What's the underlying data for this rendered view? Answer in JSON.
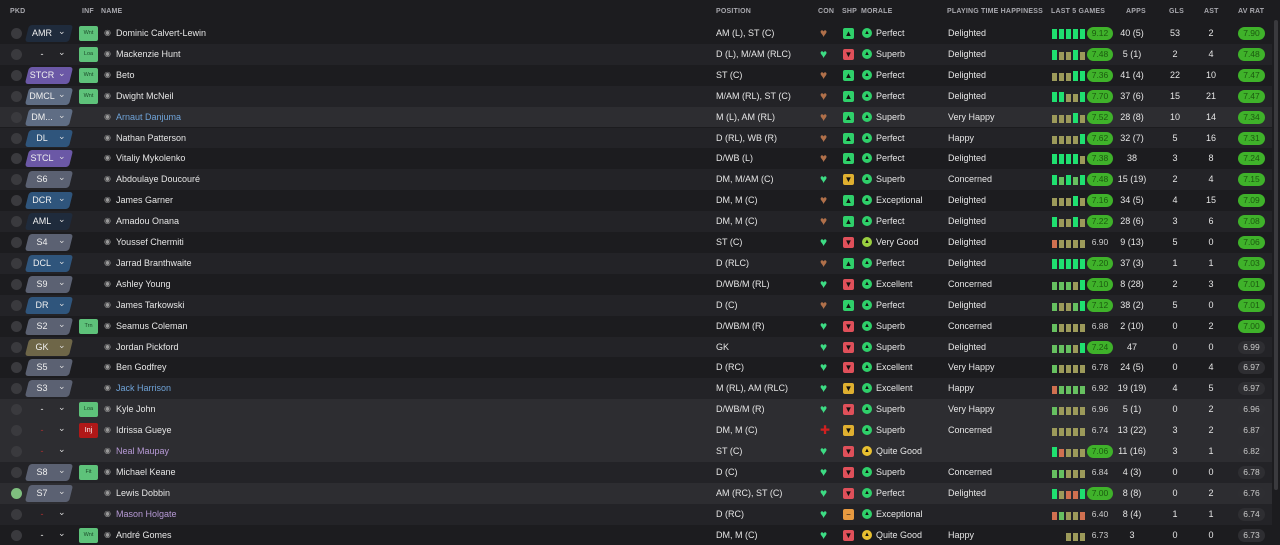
{
  "headers": {
    "pkd": "PKD",
    "inf": "INF",
    "name": "NAME",
    "position": "POSITION",
    "con": "CON",
    "shp": "SHP",
    "morale": "MORALE",
    "pth": "PLAYING TIME HAPPINESS",
    "last5": "LAST 5 GAMES",
    "apps": "APPS",
    "gls": "GLS",
    "ast": "AST",
    "avrat": "AV RAT"
  },
  "colors": {
    "slot_navy": "#1f2b3c",
    "slot_blue": "#2f557c",
    "slot_purple": "#6b58a6",
    "slot_grey": "#5b6172",
    "slot_steel": "#5f6d84",
    "slot_gk": "#6e6648",
    "green": "#3fb22a",
    "bar_G": "#1fe070",
    "bar_L": "#66c060",
    "bar_O": "#9c9a5a",
    "bar_R": "#d07050"
  },
  "players": [
    {
      "slot": "AMR",
      "slot_color": "slot_navy",
      "inf": "Wnt",
      "name": "Dominic Calvert-Lewin",
      "pos": "AM (L), ST (C)",
      "con": "brown",
      "shp": "up",
      "morale": "Perfect",
      "pth": "Delighted",
      "last5": "GGGGG",
      "last": "9.12",
      "apps": "40 (5)",
      "gls": "53",
      "ast": "2",
      "av": "7.90"
    },
    {
      "slot": "-",
      "inf": "Loa",
      "name": "Mackenzie Hunt",
      "pos": "D (L), M/AM (RLC)",
      "con": "green",
      "shp": "down",
      "morale": "Superb",
      "pth": "Delighted",
      "last5": "GOOGO",
      "last": "7.48",
      "apps": "5 (1)",
      "gls": "2",
      "ast": "4",
      "av": "7.48"
    },
    {
      "slot": "STCR",
      "slot_color": "slot_purple",
      "inf": "Wnt",
      "name": "Beto",
      "pos": "ST (C)",
      "con": "brown",
      "shp": "up",
      "morale": "Perfect",
      "pth": "Delighted",
      "last5": "OOOGG",
      "last": "7.36",
      "apps": "41 (4)",
      "gls": "22",
      "ast": "10",
      "av": "7.47"
    },
    {
      "slot": "DMCL",
      "slot_color": "slot_steel",
      "inf": "Wnt",
      "name": "Dwight McNeil",
      "pos": "M/AM (RL), ST (C)",
      "con": "brown",
      "shp": "up",
      "morale": "Perfect",
      "pth": "Delighted",
      "last5": "GGOOG",
      "last": "7.70",
      "apps": "37 (6)",
      "gls": "15",
      "ast": "21",
      "av": "7.47"
    },
    {
      "slot": "DM...",
      "slot_color": "slot_steel",
      "inf": "",
      "name": "Arnaut Danjuma",
      "name_color": "blue",
      "pos": "M (L), AM (RL)",
      "con": "brown",
      "shp": "up",
      "morale": "Superb",
      "pth": "Very Happy",
      "last5": "OOOGO",
      "last": "7.52",
      "apps": "28 (8)",
      "gls": "10",
      "ast": "14",
      "av": "7.34",
      "hl": true
    },
    {
      "slot": "DL",
      "slot_color": "slot_blue",
      "inf": "",
      "name": "Nathan Patterson",
      "pos": "D (RL), WB (R)",
      "con": "brown",
      "shp": "up",
      "morale": "Perfect",
      "pth": "Happy",
      "last5": "OOOOG",
      "last": "7.62",
      "apps": "32 (7)",
      "gls": "5",
      "ast": "16",
      "av": "7.31"
    },
    {
      "slot": "STCL",
      "slot_color": "slot_purple",
      "inf": "",
      "name": "Vitaliy Mykolenko",
      "pos": "D/WB (L)",
      "con": "brown",
      "shp": "up",
      "morale": "Perfect",
      "pth": "Delighted",
      "last5": "GGGGO",
      "last": "7.38",
      "apps": "38",
      "gls": "3",
      "ast": "8",
      "av": "7.24"
    },
    {
      "slot": "S6",
      "slot_color": "slot_grey",
      "inf": "",
      "name": "Abdoulaye Doucouré",
      "pos": "DM, M/AM (C)",
      "con": "green",
      "shp": "mid",
      "morale": "Superb",
      "pth": "Concerned",
      "last5": "GLGLG",
      "last": "7.48",
      "apps": "15 (19)",
      "gls": "2",
      "ast": "4",
      "av": "7.15"
    },
    {
      "slot": "DCR",
      "slot_color": "slot_blue",
      "inf": "",
      "name": "James Garner",
      "pos": "DM, M (C)",
      "con": "brown",
      "shp": "up",
      "morale": "Exceptional",
      "pth": "Delighted",
      "last5": "OOOGO",
      "last": "7.16",
      "apps": "34 (5)",
      "gls": "4",
      "ast": "15",
      "av": "7.09"
    },
    {
      "slot": "AML",
      "slot_color": "slot_navy",
      "inf": "",
      "name": "Amadou Onana",
      "pos": "DM, M (C)",
      "con": "brown",
      "shp": "up",
      "morale": "Perfect",
      "pth": "Delighted",
      "last5": "GOOGO",
      "last": "7.22",
      "apps": "28 (6)",
      "gls": "3",
      "ast": "6",
      "av": "7.08"
    },
    {
      "slot": "S4",
      "slot_color": "slot_grey",
      "inf": "",
      "name": "Youssef Chermiti",
      "pos": "ST (C)",
      "con": "green",
      "shp": "down",
      "morale": "Very Good",
      "pth": "Delighted",
      "last5": "ROOOO",
      "last": "6.90",
      "apps": "9 (13)",
      "gls": "5",
      "ast": "0",
      "av": "7.06"
    },
    {
      "slot": "DCL",
      "slot_color": "slot_blue",
      "inf": "",
      "name": "Jarrad Branthwaite",
      "pos": "D (RLC)",
      "con": "brown",
      "shp": "up",
      "morale": "Perfect",
      "pth": "Delighted",
      "last5": "GGGGG",
      "last": "7.20",
      "apps": "37 (3)",
      "gls": "1",
      "ast": "1",
      "av": "7.03"
    },
    {
      "slot": "S9",
      "slot_color": "slot_grey",
      "inf": "",
      "name": "Ashley Young",
      "pos": "D/WB/M (RL)",
      "con": "green",
      "shp": "down",
      "morale": "Excellent",
      "pth": "Concerned",
      "last5": "LLLOG",
      "last": "7.10",
      "apps": "8 (28)",
      "gls": "2",
      "ast": "3",
      "av": "7.01"
    },
    {
      "slot": "DR",
      "slot_color": "slot_blue",
      "inf": "",
      "name": "James Tarkowski",
      "pos": "D (C)",
      "con": "brown",
      "shp": "up",
      "morale": "Perfect",
      "pth": "Delighted",
      "last5": "LOOLG",
      "last": "7.12",
      "apps": "38 (2)",
      "gls": "5",
      "ast": "0",
      "av": "7.01"
    },
    {
      "slot": "S2",
      "slot_color": "slot_grey",
      "inf": "Trn",
      "name": "Seamus Coleman",
      "pos": "D/WB/M (R)",
      "con": "green",
      "shp": "down",
      "morale": "Superb",
      "pth": "Concerned",
      "last5": "LOOOO",
      "last": "6.88",
      "apps": "2 (10)",
      "gls": "0",
      "ast": "2",
      "av": "7.00"
    },
    {
      "slot": "GK",
      "slot_color": "slot_gk",
      "inf": "",
      "name": "Jordan Pickford",
      "pos": "GK",
      "con": "green",
      "shp": "down",
      "morale": "Superb",
      "pth": "Delighted",
      "last5": "LLLOG",
      "last": "7.24",
      "apps": "47",
      "gls": "0",
      "ast": "0",
      "av": "6.99"
    },
    {
      "slot": "S5",
      "slot_color": "slot_grey",
      "inf": "",
      "name": "Ben Godfrey",
      "pos": "D (RC)",
      "con": "green",
      "shp": "down",
      "morale": "Excellent",
      "pth": "Very Happy",
      "last5": "LOOOO",
      "last": "6.78",
      "apps": "24 (5)",
      "gls": "0",
      "ast": "4",
      "av": "6.97"
    },
    {
      "slot": "S3",
      "slot_color": "slot_grey",
      "inf": "",
      "name": "Jack Harrison",
      "name_color": "blue",
      "pos": "M (RL), AM (RLC)",
      "con": "green",
      "shp": "mid",
      "morale": "Excellent",
      "pth": "Happy",
      "last5": "RLLLL",
      "last": "6.92",
      "apps": "19 (19)",
      "gls": "4",
      "ast": "5",
      "av": "6.97"
    },
    {
      "slot": "-",
      "inf": "Loa",
      "name": "Kyle John",
      "pos": "D/WB/M (R)",
      "con": "green",
      "shp": "down",
      "morale": "Superb",
      "pth": "Very Happy",
      "last5": "LOOOO",
      "last": "6.96",
      "apps": "5 (1)",
      "gls": "0",
      "ast": "2",
      "av": "6.96",
      "hl": true
    },
    {
      "slot": "-",
      "slot_red": true,
      "inf": "Inj",
      "name": "Idrissa Gueye",
      "pos": "DM, M (C)",
      "con": "injured",
      "shp": "mid",
      "morale": "Superb",
      "pth": "Concerned",
      "last5": "OOOOO",
      "last": "6.74",
      "apps": "13 (22)",
      "gls": "3",
      "ast": "2",
      "av": "6.87",
      "hl": true
    },
    {
      "slot": "-",
      "slot_red": true,
      "inf": "",
      "name": "Neal Maupay",
      "name_color": "purple",
      "pos": "ST (C)",
      "con": "green",
      "shp": "down",
      "morale": "Quite Good",
      "pth": "",
      "last5": "GROOO",
      "last": "7.06",
      "apps": "11 (16)",
      "gls": "3",
      "ast": "1",
      "av": "6.82",
      "hl": true
    },
    {
      "slot": "S8",
      "slot_color": "slot_grey",
      "inf": "Fit",
      "name": "Michael Keane",
      "pos": "D (C)",
      "con": "green",
      "shp": "down",
      "morale": "Superb",
      "pth": "Concerned",
      "last5": "LLOOO",
      "last": "6.84",
      "apps": "4 (3)",
      "gls": "0",
      "ast": "0",
      "av": "6.78"
    },
    {
      "slot": "S7",
      "slot_color": "slot_grey",
      "checked": true,
      "inf": "",
      "name": "Lewis Dobbin",
      "pos": "AM (RC), ST (C)",
      "con": "green",
      "shp": "down",
      "morale": "Perfect",
      "pth": "Delighted",
      "last5": "GORRG",
      "last": "7.00",
      "apps": "8 (8)",
      "gls": "0",
      "ast": "2",
      "av": "6.76",
      "hl": true
    },
    {
      "slot": "-",
      "slot_red": true,
      "inf": "",
      "name": "Mason Holgate",
      "name_color": "purple",
      "pos": "D (RC)",
      "con": "green",
      "shp": "neutral",
      "morale": "Exceptional",
      "pth": "",
      "last5": "RLOOR",
      "last": "6.40",
      "apps": "8 (4)",
      "gls": "1",
      "ast": "1",
      "av": "6.74"
    },
    {
      "slot": "-",
      "inf": "Wnt",
      "name": "André Gomes",
      "pos": "DM, M (C)",
      "con": "green",
      "shp": "down",
      "morale": "Quite Good",
      "pth": "Happy",
      "last5": "OOO",
      "last": "6.73",
      "apps": "3",
      "gls": "0",
      "ast": "0",
      "av": "6.73"
    }
  ]
}
